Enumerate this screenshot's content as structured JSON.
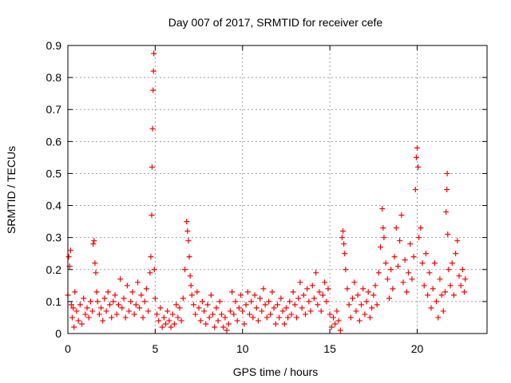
{
  "chart_data": {
    "type": "scatter",
    "title": "Day 007 of 2017, SRMTID for receiver cefe",
    "xlabel": "GPS time / hours",
    "ylabel": "SRMTID / TECUs",
    "xlim": [
      0,
      24
    ],
    "ylim": [
      0,
      0.9
    ],
    "xticks": [
      0,
      5,
      10,
      15,
      20
    ],
    "yticks": [
      0,
      0.1,
      0.2,
      0.3,
      0.4,
      0.5,
      0.6,
      0.7,
      0.8,
      0.9
    ],
    "xtick_labels": [
      "0",
      "5",
      "10",
      "15",
      "20"
    ],
    "ytick_labels": [
      "0",
      "0.1",
      "0.2",
      "0.3",
      "0.4",
      "0.5",
      "0.6",
      "0.7",
      "0.8",
      "0.9"
    ],
    "grid": true,
    "marker": "+",
    "series": [
      {
        "name": "SRMTID",
        "color": "#ff0000",
        "points": [
          [
            0.0,
            0.12
          ],
          [
            0.05,
            0.24
          ],
          [
            0.1,
            0.21
          ],
          [
            0.15,
            0.26
          ],
          [
            0.2,
            0.09
          ],
          [
            0.25,
            0.05
          ],
          [
            0.3,
            0.08
          ],
          [
            0.35,
            0.02
          ],
          [
            0.4,
            0.13
          ],
          [
            0.5,
            0.07
          ],
          [
            0.6,
            0.04
          ],
          [
            0.7,
            0.09
          ],
          [
            0.8,
            0.03
          ],
          [
            0.9,
            0.11
          ],
          [
            1.0,
            0.06
          ],
          [
            1.1,
            0.08
          ],
          [
            1.2,
            0.05
          ],
          [
            1.3,
            0.1
          ],
          [
            1.4,
            0.07
          ],
          [
            1.45,
            0.28
          ],
          [
            1.5,
            0.29
          ],
          [
            1.55,
            0.22
          ],
          [
            1.6,
            0.19
          ],
          [
            1.65,
            0.13
          ],
          [
            1.7,
            0.1
          ],
          [
            1.8,
            0.06
          ],
          [
            1.9,
            0.08
          ],
          [
            2.0,
            0.04
          ],
          [
            2.1,
            0.11
          ],
          [
            2.2,
            0.07
          ],
          [
            2.3,
            0.13
          ],
          [
            2.4,
            0.09
          ],
          [
            2.5,
            0.05
          ],
          [
            2.6,
            0.1
          ],
          [
            2.7,
            0.12
          ],
          [
            2.8,
            0.06
          ],
          [
            2.9,
            0.09
          ],
          [
            3.0,
            0.17
          ],
          [
            3.1,
            0.08
          ],
          [
            3.2,
            0.11
          ],
          [
            3.3,
            0.05
          ],
          [
            3.4,
            0.15
          ],
          [
            3.5,
            0.07
          ],
          [
            3.6,
            0.1
          ],
          [
            3.7,
            0.13
          ],
          [
            3.8,
            0.06
          ],
          [
            3.9,
            0.09
          ],
          [
            4.0,
            0.16
          ],
          [
            4.1,
            0.08
          ],
          [
            4.2,
            0.12
          ],
          [
            4.3,
            0.05
          ],
          [
            4.4,
            0.1
          ],
          [
            4.5,
            0.14
          ],
          [
            4.6,
            0.07
          ],
          [
            4.7,
            0.19
          ],
          [
            4.75,
            0.24
          ],
          [
            4.8,
            0.37
          ],
          [
            4.82,
            0.52
          ],
          [
            4.85,
            0.64
          ],
          [
            4.88,
            0.76
          ],
          [
            4.9,
            0.82
          ],
          [
            4.92,
            0.875
          ],
          [
            4.95,
            0.2
          ],
          [
            5.0,
            0.11
          ],
          [
            5.1,
            0.06
          ],
          [
            5.2,
            0.04
          ],
          [
            5.3,
            0.08
          ],
          [
            5.4,
            0.02
          ],
          [
            5.5,
            0.05
          ],
          [
            5.6,
            0.03
          ],
          [
            5.7,
            0.07
          ],
          [
            5.8,
            0.04
          ],
          [
            5.9,
            0.02
          ],
          [
            6.0,
            0.06
          ],
          [
            6.1,
            0.03
          ],
          [
            6.2,
            0.09
          ],
          [
            6.3,
            0.05
          ],
          [
            6.4,
            0.08
          ],
          [
            6.5,
            0.04
          ],
          [
            6.6,
            0.11
          ],
          [
            6.7,
            0.2
          ],
          [
            6.8,
            0.35
          ],
          [
            6.85,
            0.32
          ],
          [
            6.9,
            0.29
          ],
          [
            6.95,
            0.24
          ],
          [
            7.0,
            0.18
          ],
          [
            7.05,
            0.15
          ],
          [
            7.1,
            0.12
          ],
          [
            7.2,
            0.09
          ],
          [
            7.3,
            0.06
          ],
          [
            7.4,
            0.13
          ],
          [
            7.5,
            0.08
          ],
          [
            7.6,
            0.04
          ],
          [
            7.7,
            0.1
          ],
          [
            7.8,
            0.07
          ],
          [
            7.9,
            0.03
          ],
          [
            8.0,
            0.09
          ],
          [
            8.1,
            0.05
          ],
          [
            8.2,
            0.12
          ],
          [
            8.3,
            0.06
          ],
          [
            8.4,
            0.02
          ],
          [
            8.5,
            0.08
          ],
          [
            8.6,
            0.04
          ],
          [
            8.7,
            0.1
          ],
          [
            8.8,
            0.06
          ],
          [
            8.9,
            0.02
          ],
          [
            9.0,
            0.05
          ],
          [
            9.1,
            0.01
          ],
          [
            9.2,
            0.03
          ],
          [
            9.3,
            0.07
          ],
          [
            9.4,
            0.13
          ],
          [
            9.5,
            0.06
          ],
          [
            9.6,
            0.1
          ],
          [
            9.7,
            0.04
          ],
          [
            9.8,
            0.08
          ],
          [
            9.9,
            0.12
          ],
          [
            10.0,
            0.07
          ],
          [
            10.1,
            0.03
          ],
          [
            10.2,
            0.09
          ],
          [
            10.3,
            0.13
          ],
          [
            10.4,
            0.06
          ],
          [
            10.5,
            0.1
          ],
          [
            10.6,
            0.05
          ],
          [
            10.7,
            0.12
          ],
          [
            10.8,
            0.08
          ],
          [
            10.9,
            0.04
          ],
          [
            11.0,
            0.11
          ],
          [
            11.1,
            0.07
          ],
          [
            11.2,
            0.14
          ],
          [
            11.3,
            0.09
          ],
          [
            11.4,
            0.05
          ],
          [
            11.5,
            0.1
          ],
          [
            11.6,
            0.06
          ],
          [
            11.7,
            0.13
          ],
          [
            11.8,
            0.08
          ],
          [
            11.9,
            0.03
          ],
          [
            12.0,
            0.09
          ],
          [
            12.1,
            0.05
          ],
          [
            12.2,
            0.11
          ],
          [
            12.3,
            0.07
          ],
          [
            12.4,
            0.03
          ],
          [
            12.5,
            0.08
          ],
          [
            12.6,
            0.05
          ],
          [
            12.7,
            0.1
          ],
          [
            12.8,
            0.06
          ],
          [
            12.9,
            0.13
          ],
          [
            13.0,
            0.09
          ],
          [
            13.1,
            0.05
          ],
          [
            13.2,
            0.11
          ],
          [
            13.3,
            0.16
          ],
          [
            13.4,
            0.08
          ],
          [
            13.5,
            0.12
          ],
          [
            13.6,
            0.06
          ],
          [
            13.7,
            0.14
          ],
          [
            13.8,
            0.1
          ],
          [
            13.9,
            0.07
          ],
          [
            14.0,
            0.15
          ],
          [
            14.1,
            0.11
          ],
          [
            14.2,
            0.19
          ],
          [
            14.3,
            0.09
          ],
          [
            14.4,
            0.13
          ],
          [
            14.5,
            0.07
          ],
          [
            14.6,
            0.12
          ],
          [
            14.7,
            0.16
          ],
          [
            14.8,
            0.1
          ],
          [
            14.9,
            0.14
          ],
          [
            15.0,
            0.06
          ],
          [
            15.1,
            0.02
          ],
          [
            15.2,
            0.05
          ],
          [
            15.3,
            0.03
          ],
          [
            15.4,
            0.07
          ],
          [
            15.5,
            0.04
          ],
          [
            15.6,
            0.01
          ],
          [
            15.7,
            0.3
          ],
          [
            15.75,
            0.32
          ],
          [
            15.8,
            0.28
          ],
          [
            15.85,
            0.25
          ],
          [
            15.9,
            0.2
          ],
          [
            16.0,
            0.14
          ],
          [
            16.1,
            0.09
          ],
          [
            16.2,
            0.05
          ],
          [
            16.3,
            0.11
          ],
          [
            16.4,
            0.16
          ],
          [
            16.5,
            0.07
          ],
          [
            16.6,
            0.12
          ],
          [
            16.7,
            0.04
          ],
          [
            16.8,
            0.09
          ],
          [
            16.9,
            0.14
          ],
          [
            17.0,
            0.06
          ],
          [
            17.1,
            0.1
          ],
          [
            17.2,
            0.13
          ],
          [
            17.3,
            0.05
          ],
          [
            17.4,
            0.08
          ],
          [
            17.5,
            0.12
          ],
          [
            17.6,
            0.15
          ],
          [
            17.7,
            0.09
          ],
          [
            17.8,
            0.19
          ],
          [
            17.9,
            0.27
          ],
          [
            18.0,
            0.39
          ],
          [
            18.05,
            0.33
          ],
          [
            18.1,
            0.3
          ],
          [
            18.2,
            0.22
          ],
          [
            18.3,
            0.17
          ],
          [
            18.4,
            0.11
          ],
          [
            18.5,
            0.2
          ],
          [
            18.6,
            0.14
          ],
          [
            18.7,
            0.24
          ],
          [
            18.8,
            0.33
          ],
          [
            18.9,
            0.21
          ],
          [
            19.0,
            0.29
          ],
          [
            19.1,
            0.37
          ],
          [
            19.2,
            0.16
          ],
          [
            19.3,
            0.23
          ],
          [
            19.4,
            0.13
          ],
          [
            19.5,
            0.19
          ],
          [
            19.6,
            0.28
          ],
          [
            19.7,
            0.17
          ],
          [
            19.8,
            0.24
          ],
          [
            19.9,
            0.45
          ],
          [
            19.95,
            0.55
          ],
          [
            20.0,
            0.58
          ],
          [
            20.05,
            0.52
          ],
          [
            20.1,
            0.3
          ],
          [
            20.2,
            0.33
          ],
          [
            20.3,
            0.22
          ],
          [
            20.4,
            0.15
          ],
          [
            20.5,
            0.25
          ],
          [
            20.6,
            0.12
          ],
          [
            20.7,
            0.19
          ],
          [
            20.8,
            0.08
          ],
          [
            20.9,
            0.14
          ],
          [
            21.0,
            0.22
          ],
          [
            21.1,
            0.1
          ],
          [
            21.2,
            0.05
          ],
          [
            21.3,
            0.17
          ],
          [
            21.4,
            0.12
          ],
          [
            21.5,
            0.07
          ],
          [
            21.6,
            0.13
          ],
          [
            21.65,
            0.38
          ],
          [
            21.7,
            0.45
          ],
          [
            21.72,
            0.5
          ],
          [
            21.75,
            0.31
          ],
          [
            21.8,
            0.2
          ],
          [
            21.9,
            0.15
          ],
          [
            22.0,
            0.22
          ],
          [
            22.1,
            0.12
          ],
          [
            22.2,
            0.25
          ],
          [
            22.3,
            0.29
          ],
          [
            22.4,
            0.18
          ],
          [
            22.5,
            0.15
          ],
          [
            22.6,
            0.2
          ],
          [
            22.7,
            0.13
          ],
          [
            22.75,
            0.17
          ]
        ]
      }
    ]
  }
}
